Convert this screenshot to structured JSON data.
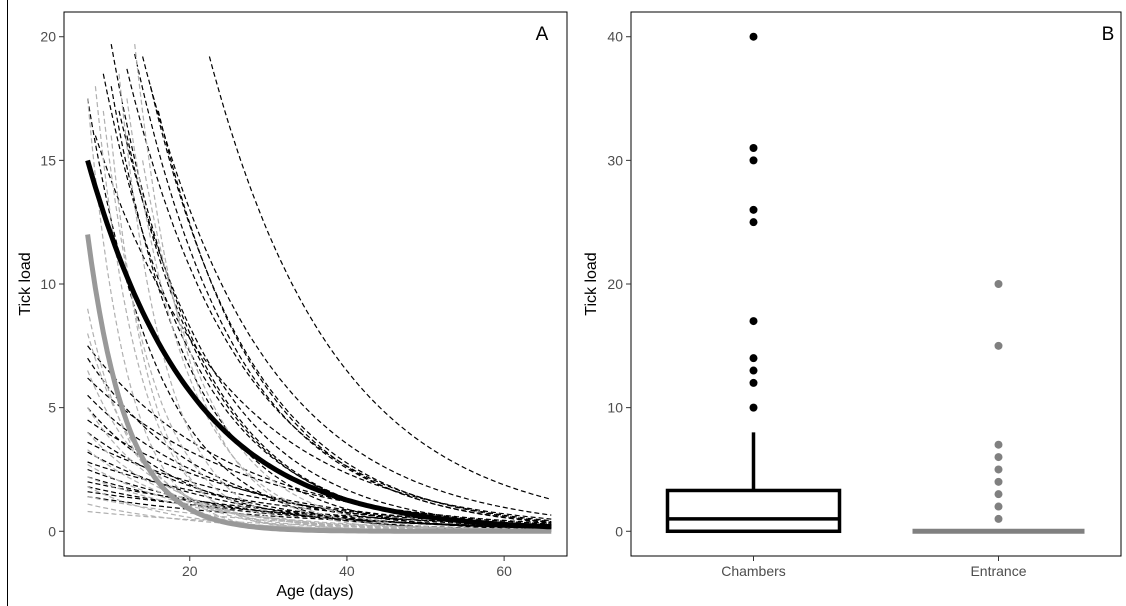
{
  "chart_data": [
    {
      "type": "line",
      "panel_label": "A",
      "xlabel": "Age (days)",
      "ylabel": "Tick load",
      "xlim": [
        4,
        68
      ],
      "ylim": [
        -1,
        21
      ],
      "x_ticks": [
        20,
        40,
        60
      ],
      "y_ticks": [
        0,
        5,
        10,
        15,
        20
      ],
      "grid": false,
      "colors": {
        "chambers": "#000000",
        "entrance": "#999999",
        "entrance_individual": "#b0b0b0"
      },
      "individual_curves": [
        {
          "group": "chambers",
          "x_start": 8,
          "y_start": 16,
          "decay": 0.06
        },
        {
          "group": "chambers",
          "x_start": 9,
          "y_start": 18.5,
          "decay": 0.085
        },
        {
          "group": "chambers",
          "x_start": 10,
          "y_start": 19.7,
          "decay": 0.09
        },
        {
          "group": "chambers",
          "x_start": 10,
          "y_start": 18,
          "decay": 0.1
        },
        {
          "group": "chambers",
          "x_start": 12,
          "y_start": 18.7,
          "decay": 0.07
        },
        {
          "group": "chambers",
          "x_start": 13,
          "y_start": 19.3,
          "decay": 0.075
        },
        {
          "group": "chambers",
          "x_start": 14,
          "y_start": 19.2,
          "decay": 0.065
        },
        {
          "group": "chambers",
          "x_start": 11,
          "y_start": 17,
          "decay": 0.08
        },
        {
          "group": "chambers",
          "x_start": 15,
          "y_start": 18,
          "decay": 0.075
        },
        {
          "group": "chambers",
          "x_start": 12,
          "y_start": 16,
          "decay": 0.09
        },
        {
          "group": "chambers",
          "x_start": 22.5,
          "y_start": 19.2,
          "decay": 0.062
        },
        {
          "group": "chambers",
          "x_start": 16,
          "y_start": 17,
          "decay": 0.078
        },
        {
          "group": "chambers",
          "x_start": 7,
          "y_start": 17.5,
          "decay": 0.11
        },
        {
          "group": "chambers",
          "x_start": 7,
          "y_start": 7.5,
          "decay": 0.055
        },
        {
          "group": "chambers",
          "x_start": 7,
          "y_start": 7,
          "decay": 0.07
        },
        {
          "group": "chambers",
          "x_start": 7,
          "y_start": 6.2,
          "decay": 0.05
        },
        {
          "group": "chambers",
          "x_start": 7,
          "y_start": 5.5,
          "decay": 0.06
        },
        {
          "group": "chambers",
          "x_start": 7,
          "y_start": 5,
          "decay": 0.075
        },
        {
          "group": "chambers",
          "x_start": 7,
          "y_start": 4.5,
          "decay": 0.05
        },
        {
          "group": "chambers",
          "x_start": 7,
          "y_start": 4,
          "decay": 0.06
        },
        {
          "group": "chambers",
          "x_start": 7,
          "y_start": 3.6,
          "decay": 0.045
        },
        {
          "group": "chambers",
          "x_start": 7,
          "y_start": 3.2,
          "decay": 0.055
        },
        {
          "group": "chambers",
          "x_start": 7,
          "y_start": 2.8,
          "decay": 0.04
        },
        {
          "group": "chambers",
          "x_start": 7,
          "y_start": 2.5,
          "decay": 0.05
        },
        {
          "group": "chambers",
          "x_start": 7,
          "y_start": 2.2,
          "decay": 0.045
        },
        {
          "group": "chambers",
          "x_start": 7,
          "y_start": 2,
          "decay": 0.035
        },
        {
          "group": "chambers",
          "x_start": 7,
          "y_start": 1.8,
          "decay": 0.04
        },
        {
          "group": "chambers",
          "x_start": 7,
          "y_start": 1.6,
          "decay": 0.03
        },
        {
          "group": "chambers",
          "x_start": 7,
          "y_start": 1.4,
          "decay": 0.035
        },
        {
          "group": "entrance",
          "x_start": 7,
          "y_start": 17.5,
          "decay": 0.2
        },
        {
          "group": "entrance",
          "x_start": 8,
          "y_start": 18,
          "decay": 0.18
        },
        {
          "group": "entrance",
          "x_start": 9,
          "y_start": 17,
          "decay": 0.16
        },
        {
          "group": "entrance",
          "x_start": 10,
          "y_start": 16,
          "decay": 0.2
        },
        {
          "group": "entrance",
          "x_start": 11,
          "y_start": 18.5,
          "decay": 0.17
        },
        {
          "group": "entrance",
          "x_start": 13,
          "y_start": 19.7,
          "decay": 0.15
        },
        {
          "group": "entrance",
          "x_start": 12,
          "y_start": 17.5,
          "decay": 0.13
        },
        {
          "group": "entrance",
          "x_start": 14,
          "y_start": 15,
          "decay": 0.12
        },
        {
          "group": "entrance",
          "x_start": 7,
          "y_start": 9,
          "decay": 0.17
        },
        {
          "group": "entrance",
          "x_start": 7,
          "y_start": 8,
          "decay": 0.14
        },
        {
          "group": "entrance",
          "x_start": 7,
          "y_start": 6.5,
          "decay": 0.12
        },
        {
          "group": "entrance",
          "x_start": 7,
          "y_start": 5,
          "decay": 0.1
        },
        {
          "group": "entrance",
          "x_start": 7,
          "y_start": 4,
          "decay": 0.09
        },
        {
          "group": "entrance",
          "x_start": 7,
          "y_start": 3.3,
          "decay": 0.08
        },
        {
          "group": "entrance",
          "x_start": 7,
          "y_start": 2.7,
          "decay": 0.07
        },
        {
          "group": "entrance",
          "x_start": 7,
          "y_start": 2.2,
          "decay": 0.06
        },
        {
          "group": "entrance",
          "x_start": 7,
          "y_start": 1.8,
          "decay": 0.09
        },
        {
          "group": "entrance",
          "x_start": 7,
          "y_start": 1.4,
          "decay": 0.05
        },
        {
          "group": "entrance",
          "x_start": 7,
          "y_start": 1.1,
          "decay": 0.07
        },
        {
          "group": "entrance",
          "x_start": 7,
          "y_start": 0.8,
          "decay": 0.04
        }
      ],
      "mean_curves": [
        {
          "group": "chambers",
          "x_start": 7,
          "x_end": 66,
          "y_start": 15,
          "decay": 0.075
        },
        {
          "group": "entrance",
          "x_start": 7,
          "x_end": 66,
          "y_start": 12,
          "decay": 0.2
        }
      ]
    },
    {
      "type": "box",
      "panel_label": "B",
      "xlabel": "",
      "ylabel": "Tick load",
      "categories": [
        "Chambers",
        "Entrance"
      ],
      "ylim": [
        -2,
        42
      ],
      "y_ticks": [
        0,
        10,
        20,
        30,
        40
      ],
      "grid": false,
      "boxes": [
        {
          "category": "Chambers",
          "color": "#000000",
          "q1": 0,
          "median": 1,
          "q3": 3.3,
          "whisker_low": 0,
          "whisker_high": 8,
          "outliers": [
            10,
            12,
            13,
            14,
            17,
            25,
            26,
            30,
            31,
            40
          ]
        },
        {
          "category": "Entrance",
          "color": "#808080",
          "q1": 0,
          "median": 0,
          "q3": 0,
          "whisker_low": 0,
          "whisker_high": 0,
          "outliers": [
            1,
            2,
            3,
            4,
            5,
            6,
            7,
            15,
            20
          ]
        }
      ]
    }
  ]
}
